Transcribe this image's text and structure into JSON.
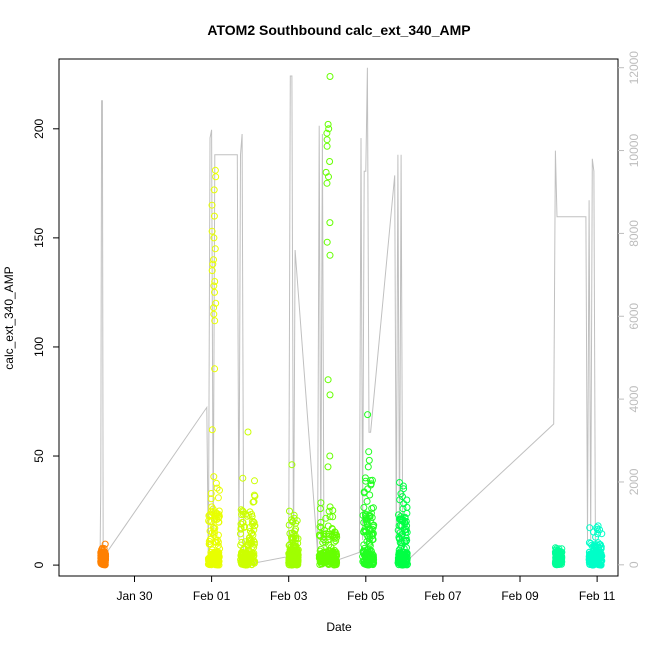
{
  "chart_data": {
    "type": "scatter",
    "title": "ATOM2 Southbound calc_ext_340_AMP",
    "xlabel": "Date",
    "ylabel": "calc_ext_340_AMP",
    "x_tick_labels": [
      "Jan 30",
      "Feb 01",
      "Feb 03",
      "Feb 05",
      "Feb 07",
      "Feb 09",
      "Feb 11"
    ],
    "x_tick_dates": [
      "2024-01-30",
      "2024-02-01",
      "2024-02-03",
      "2024-02-05",
      "2024-02-07",
      "2024-02-09",
      "2024-02-11"
    ],
    "xlim": [
      "2024-01-28 01:00",
      "2024-02-11 13:00"
    ],
    "ylim": [
      -5,
      232
    ],
    "y_ticks": [
      0,
      50,
      100,
      150,
      200
    ],
    "y2_ticks": [
      0,
      2000,
      4000,
      6000,
      8000,
      10000,
      12000
    ],
    "y2lim": [
      -270,
      12210
    ],
    "grid": false,
    "clusters": [
      {
        "start": "2024-01-29 03:00",
        "end": "2024-01-29 06:00",
        "color": "#ff8000",
        "max": 10,
        "outliers": []
      },
      {
        "start": "2024-01-31 22:00",
        "end": "2024-02-01 05:00",
        "color": "#e8ff00",
        "max": 42,
        "outliers": [
          62,
          90,
          112,
          115,
          118,
          120,
          125,
          128,
          130,
          135,
          138,
          140,
          145,
          150,
          153,
          160,
          165,
          172,
          178,
          181
        ]
      },
      {
        "start": "2024-02-01 18:00",
        "end": "2024-02-02 03:00",
        "color": "#ccff00",
        "max": 43,
        "outliers": [
          61
        ]
      },
      {
        "start": "2024-02-03 00:00",
        "end": "2024-02-03 06:00",
        "color": "#a0ff00",
        "max": 25,
        "outliers": [
          46
        ]
      },
      {
        "start": "2024-02-03 19:00",
        "end": "2024-02-04 06:00",
        "color": "#66ff00",
        "max": 30,
        "outliers": [
          45,
          50,
          78,
          85,
          142,
          148,
          157,
          175,
          178,
          180,
          185,
          192,
          195,
          198,
          200,
          202,
          224
        ]
      },
      {
        "start": "2024-02-04 22:00",
        "end": "2024-02-05 05:00",
        "color": "#22ff22",
        "max": 40,
        "outliers": [
          45,
          48,
          52,
          69
        ]
      },
      {
        "start": "2024-02-05 20:00",
        "end": "2024-02-06 02:00",
        "color": "#00ff44",
        "max": 38,
        "outliers": []
      },
      {
        "start": "2024-02-09 22:00",
        "end": "2024-02-10 02:00",
        "color": "#00ff99",
        "max": 8,
        "outliers": []
      },
      {
        "start": "2024-02-10 19:00",
        "end": "2024-02-11 03:00",
        "color": "#00ffc8",
        "max": 18,
        "outliers": []
      }
    ],
    "secondary_line": {
      "color": "#c0c0c0",
      "points": [
        [
          "2024-01-29 02:30",
          0
        ],
        [
          "2024-01-29 03:00",
          2000
        ],
        [
          "2024-01-29 03:30",
          11200
        ],
        [
          "2024-01-29 04:00",
          11200
        ],
        [
          "2024-01-29 04:30",
          0
        ],
        [
          "2024-01-29 05:00",
          200
        ],
        [
          "2024-01-31 21:00",
          3800
        ],
        [
          "2024-01-31 22:00",
          0
        ],
        [
          "2024-01-31 23:00",
          10300
        ],
        [
          "2024-02-01 00:00",
          10500
        ],
        [
          "2024-02-01 01:00",
          600
        ],
        [
          "2024-02-01 02:00",
          9900
        ],
        [
          "2024-02-01 03:00",
          9900
        ],
        [
          "2024-02-01 16:00",
          9900
        ],
        [
          "2024-02-01 17:00",
          600
        ],
        [
          "2024-02-01 18:00",
          9900
        ],
        [
          "2024-02-01 19:00",
          10400
        ],
        [
          "2024-02-01 20:00",
          0
        ],
        [
          "2024-02-01 21:00",
          0
        ],
        [
          "2024-02-03 00:00",
          200
        ],
        [
          "2024-02-03 01:00",
          11800
        ],
        [
          "2024-02-03 02:00",
          11800
        ],
        [
          "2024-02-03 03:00",
          0
        ],
        [
          "2024-02-03 04:00",
          7600
        ],
        [
          "2024-02-03 18:00",
          300
        ],
        [
          "2024-02-03 19:00",
          10600
        ],
        [
          "2024-02-03 20:00",
          600
        ],
        [
          "2024-02-03 21:00",
          10400
        ],
        [
          "2024-02-03 22:00",
          0
        ],
        [
          "2024-02-04 20:00",
          300
        ],
        [
          "2024-02-04 21:00",
          10300
        ],
        [
          "2024-02-04 22:00",
          600
        ],
        [
          "2024-02-04 23:00",
          9500
        ],
        [
          "2024-02-05 00:00",
          9500
        ],
        [
          "2024-02-05 01:00",
          12000
        ],
        [
          "2024-02-05 02:00",
          3200
        ],
        [
          "2024-02-05 03:00",
          3200
        ],
        [
          "2024-02-05 18:00",
          9400
        ],
        [
          "2024-02-05 19:00",
          600
        ],
        [
          "2024-02-05 20:00",
          9900
        ],
        [
          "2024-02-05 21:00",
          500
        ],
        [
          "2024-02-05 22:00",
          9900
        ],
        [
          "2024-02-05 23:00",
          0
        ],
        [
          "2024-02-09 21:00",
          3400
        ],
        [
          "2024-02-09 22:00",
          10000
        ],
        [
          "2024-02-09 23:00",
          8400
        ],
        [
          "2024-02-10 17:00",
          8400
        ],
        [
          "2024-02-10 18:00",
          600
        ],
        [
          "2024-02-10 19:00",
          8800
        ],
        [
          "2024-02-10 20:00",
          600
        ],
        [
          "2024-02-10 21:00",
          9800
        ],
        [
          "2024-02-10 22:00",
          9500
        ],
        [
          "2024-02-10 23:00",
          0
        ]
      ]
    }
  }
}
